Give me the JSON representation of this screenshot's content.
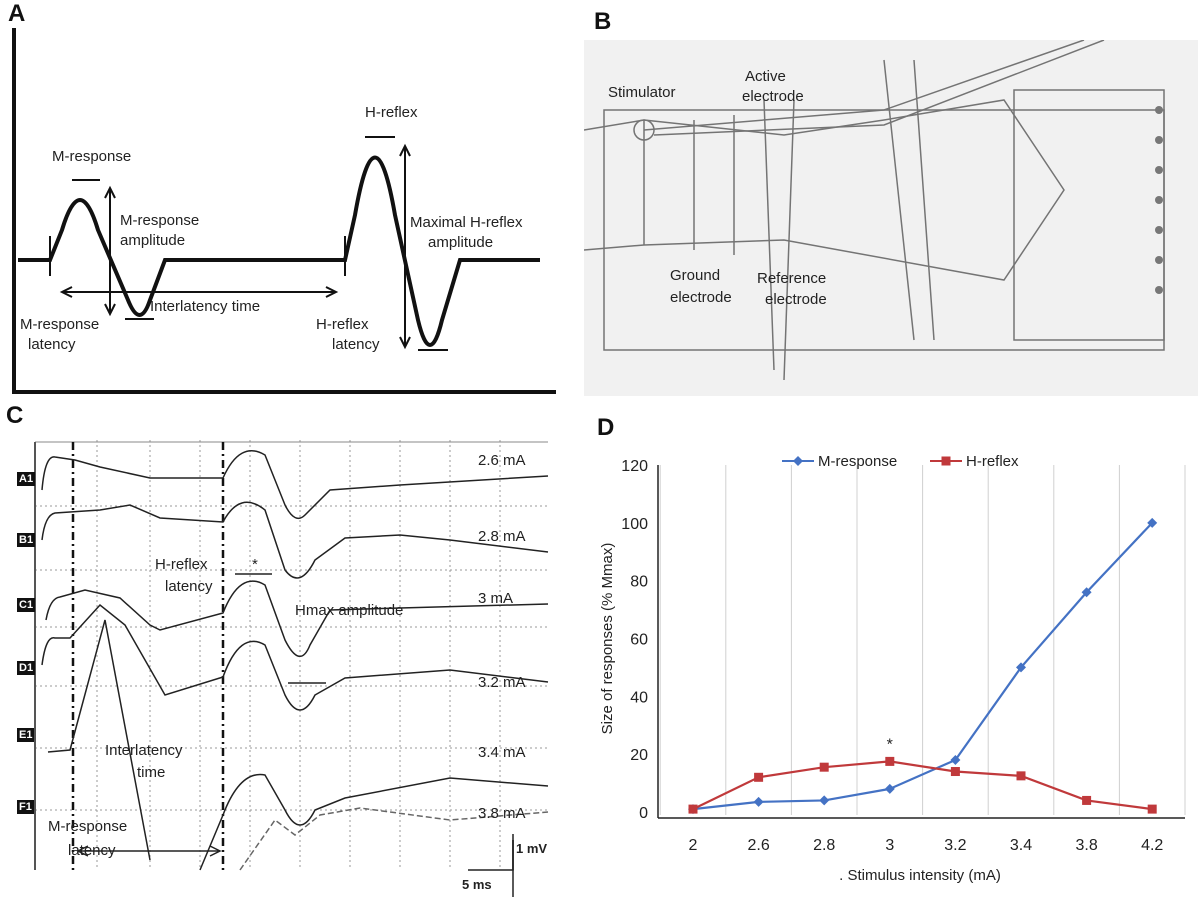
{
  "panels": {
    "a": "A",
    "b": "B",
    "c": "C",
    "d": "D"
  },
  "panel_a": {
    "m_response": "M-response",
    "m_amp_1": "M-response",
    "m_amp_2": "amplitude",
    "h_reflex": "H-reflex",
    "h_amp_1": "Maximal H-reflex",
    "h_amp_2": "amplitude",
    "interlatency": "Interlatency time",
    "m_lat_1": "M-response",
    "m_lat_2": "latency",
    "h_lat_1": "H-reflex",
    "h_lat_2": "latency"
  },
  "panel_b": {
    "stimulator": "Stimulator",
    "active_1": "Active",
    "active_2": "electrode",
    "ground_1": "Ground",
    "ground_2": "electrode",
    "reference_1": "Reference",
    "reference_2": "electrode"
  },
  "panel_c": {
    "rows": [
      {
        "tag": "A1",
        "intensity": "2.6 mA"
      },
      {
        "tag": "B1",
        "intensity": "2.8 mA"
      },
      {
        "tag": "C1",
        "intensity": "3 mA"
      },
      {
        "tag": "D1",
        "intensity": "3.2 mA"
      },
      {
        "tag": "E1",
        "intensity": "3.4 mA"
      },
      {
        "tag": "F1",
        "intensity": "3.8 mA"
      }
    ],
    "h_lat_1": "H-reflex",
    "h_lat_2": "latency",
    "star": "*",
    "hmax": "Hmax amplitude",
    "inter_1": "Interlatency",
    "inter_2": "time",
    "m_lat_1": "M-response",
    "m_lat_2": "latency",
    "scale_v": "1 mV",
    "scale_h": "5 ms"
  },
  "chart_data": {
    "type": "line",
    "categories": [
      "2",
      "2.6",
      "2.8",
      "3",
      "3.2",
      "3.4",
      "3.8",
      "4.2"
    ],
    "series": [
      {
        "name": "M-response",
        "color": "#4472c4",
        "marker": "diamond",
        "values": [
          1,
          3.5,
          4,
          8,
          18,
          50,
          76,
          100
        ]
      },
      {
        "name": "H-reflex",
        "color": "#c0393b",
        "marker": "square",
        "values": [
          1,
          12,
          15.5,
          17.5,
          14,
          12.5,
          4,
          1
        ]
      }
    ],
    "yticks": [
      "0",
      "20",
      "40",
      "60",
      "80",
      "100",
      "120"
    ],
    "ylim": [
      0,
      120
    ],
    "xlabel": ". Stimulus intensity (mA)",
    "ylabel": "Size of responses (% Mmax)",
    "annotation": "*",
    "legend": "top",
    "grid": "vertical"
  }
}
